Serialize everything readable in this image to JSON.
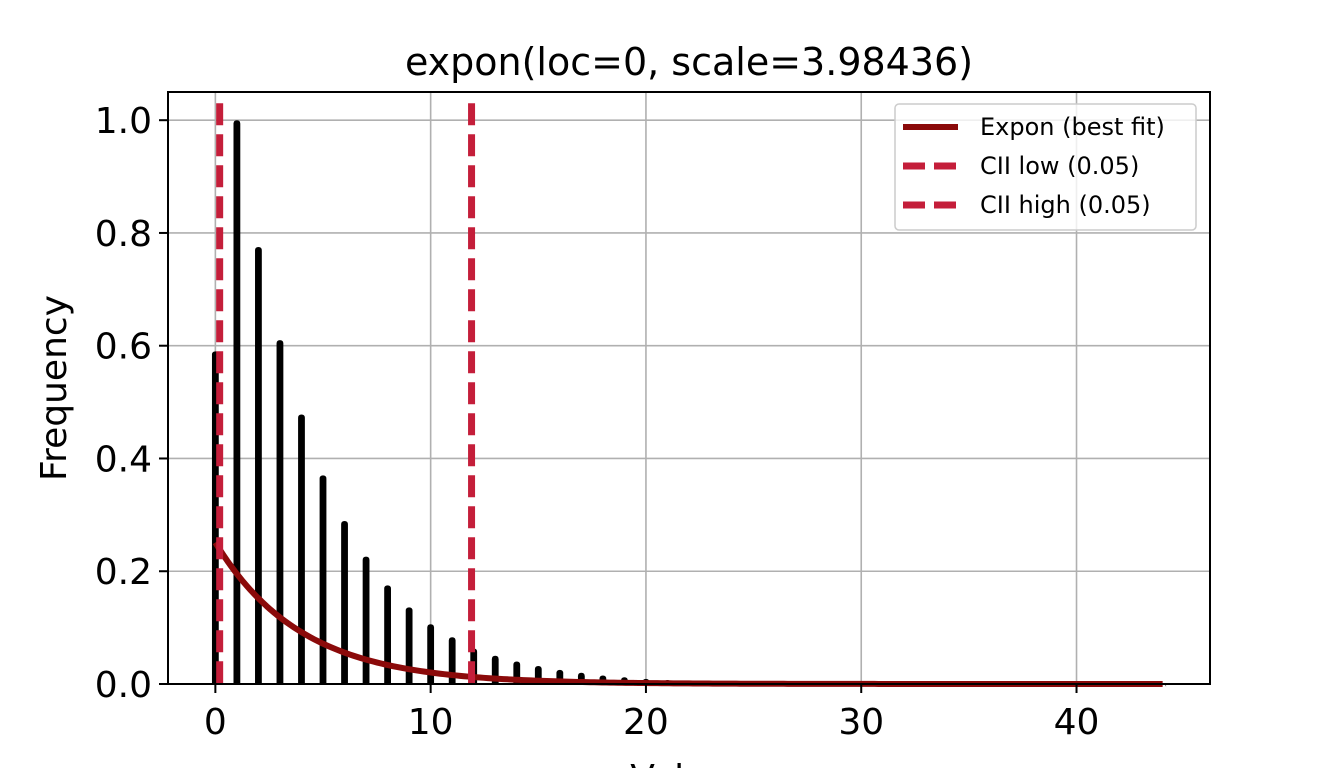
{
  "chart_data": {
    "type": "bar",
    "title": "expon(loc=0, scale=3.98436)",
    "xlabel": "Values",
    "ylabel": "Frequency",
    "xlim": [
      -2.2,
      46.2
    ],
    "ylim": [
      0,
      1.05
    ],
    "xticks": [
      0,
      10,
      20,
      30,
      40
    ],
    "yticks": [
      0.0,
      0.2,
      0.4,
      0.6,
      0.8,
      1.0
    ],
    "xtick_labels": [
      "0",
      "10",
      "20",
      "30",
      "40"
    ],
    "ytick_labels": [
      "0.0",
      "0.2",
      "0.4",
      "0.6",
      "0.8",
      "1.0"
    ],
    "grid": true,
    "legend_position": "top-right",
    "histogram": {
      "color": "#000000",
      "x": [
        0,
        1,
        2,
        3,
        4,
        5,
        6,
        7,
        8,
        9,
        10,
        11,
        12,
        13,
        14,
        15,
        16,
        17,
        18,
        19,
        20,
        21,
        22,
        23,
        24,
        25,
        26,
        27,
        28,
        29,
        30,
        31,
        32,
        33,
        34,
        35,
        36,
        37,
        38,
        39,
        40,
        41,
        42,
        43,
        44
      ],
      "values": [
        0.59,
        1.0,
        0.775,
        0.61,
        0.478,
        0.37,
        0.289,
        0.226,
        0.175,
        0.136,
        0.106,
        0.083,
        0.063,
        0.05,
        0.04,
        0.032,
        0.025,
        0.02,
        0.015,
        0.012,
        0.009,
        0.007,
        0.006,
        0.005,
        0.004,
        0.003,
        0.0025,
        0.002,
        0.0015,
        0.0012,
        0.001,
        0.0008,
        0.0006,
        0.0005,
        0.0004,
        0.0003,
        0.0003,
        0.0002,
        0.0002,
        0.0001,
        0.0001,
        0.0001,
        0.0001,
        0.0001,
        0.0001
      ]
    },
    "series": [
      {
        "name": "Expon (best fit)",
        "type": "line",
        "color": "#8b0a0a",
        "function": "expon_pdf",
        "loc": 0,
        "scale": 3.98436,
        "x_range": [
          0,
          44
        ]
      },
      {
        "name": "CII low (0.05)",
        "type": "vline",
        "color": "#c41e3a",
        "x": 0.2,
        "y_range": [
          0,
          1.03
        ]
      },
      {
        "name": "CII high (0.05)",
        "type": "vline",
        "color": "#c41e3a",
        "x": 11.9,
        "y_range": [
          0,
          1.03
        ]
      }
    ]
  }
}
